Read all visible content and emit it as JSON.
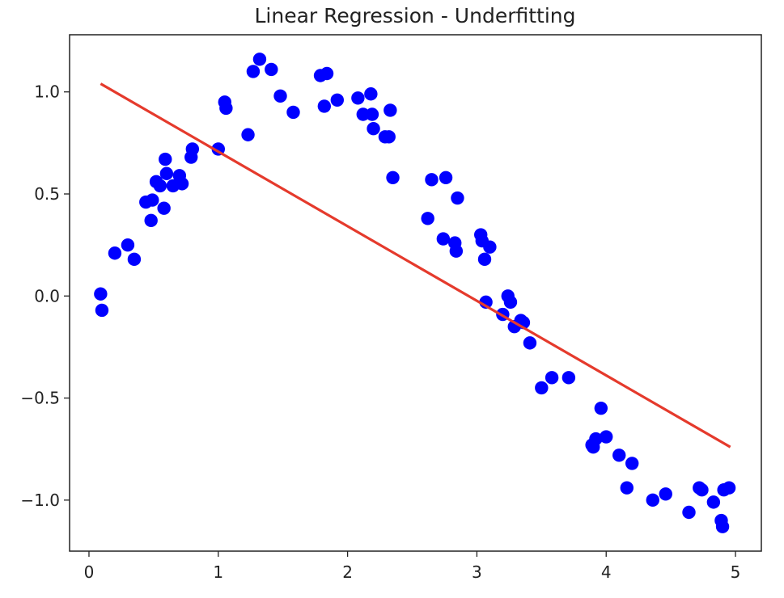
{
  "chart_data": {
    "type": "scatter",
    "title": "Linear Regression - Underfitting",
    "xlabel": "",
    "ylabel": "",
    "xlim": [
      -0.15,
      5.2
    ],
    "ylim": [
      -1.25,
      1.28
    ],
    "xticks": [
      0,
      1,
      2,
      3,
      4,
      5
    ],
    "xtick_labels": [
      "0",
      "1",
      "2",
      "3",
      "4",
      "5"
    ],
    "yticks": [
      1.0,
      0.5,
      0.0,
      -0.5,
      -1.0
    ],
    "ytick_labels": [
      "1.0",
      "0.5",
      "0.0",
      "−0.5",
      "−1.0"
    ],
    "grid": false,
    "colors": {
      "points": "#0000ff",
      "fit_line": "#e53a2c",
      "axes": "#222222"
    },
    "series": [
      {
        "kind": "scatter",
        "x": [
          0.09,
          0.1,
          0.2,
          0.3,
          0.35,
          0.44,
          0.48,
          0.49,
          0.52,
          0.55,
          0.58,
          0.59,
          0.6,
          0.65,
          0.7,
          0.72,
          0.79,
          0.8,
          1.0,
          1.05,
          1.06,
          1.23,
          1.27,
          1.32,
          1.41,
          1.48,
          1.58,
          1.79,
          1.82,
          1.84,
          1.92,
          2.08,
          2.12,
          2.18,
          2.19,
          2.2,
          2.29,
          2.32,
          2.33,
          2.35,
          2.62,
          2.65,
          2.74,
          2.76,
          2.83,
          2.84,
          2.85,
          3.03,
          3.04,
          3.06,
          3.07,
          3.1,
          3.2,
          3.24,
          3.26,
          3.29,
          3.34,
          3.36,
          3.41,
          3.5,
          3.58,
          3.71,
          3.89,
          3.9,
          3.92,
          3.96,
          4.0,
          4.1,
          4.16,
          4.2,
          4.36,
          4.46,
          4.64,
          4.72,
          4.74,
          4.83,
          4.89,
          4.9,
          4.91,
          4.95
        ],
        "y": [
          0.01,
          -0.07,
          0.21,
          0.25,
          0.18,
          0.46,
          0.37,
          0.47,
          0.56,
          0.54,
          0.43,
          0.67,
          0.6,
          0.54,
          0.59,
          0.55,
          0.68,
          0.72,
          0.72,
          0.95,
          0.92,
          0.79,
          1.1,
          1.16,
          1.11,
          0.98,
          0.9,
          1.08,
          0.93,
          1.09,
          0.96,
          0.97,
          0.89,
          0.99,
          0.89,
          0.82,
          0.78,
          0.78,
          0.91,
          0.58,
          0.38,
          0.57,
          0.28,
          0.58,
          0.26,
          0.22,
          0.48,
          0.3,
          0.27,
          0.18,
          -0.03,
          0.24,
          -0.09,
          0.0,
          -0.03,
          -0.15,
          -0.12,
          -0.13,
          -0.23,
          -0.45,
          -0.4,
          -0.4,
          -0.73,
          -0.74,
          -0.7,
          -0.55,
          -0.69,
          -0.78,
          -0.94,
          -0.82,
          -1.0,
          -0.97,
          -1.06,
          -0.94,
          -0.95,
          -1.01,
          -1.1,
          -1.13,
          -0.95,
          -0.94
        ]
      },
      {
        "kind": "line",
        "x": [
          0.09,
          4.96
        ],
        "y": [
          1.04,
          -0.74
        ]
      }
    ]
  }
}
